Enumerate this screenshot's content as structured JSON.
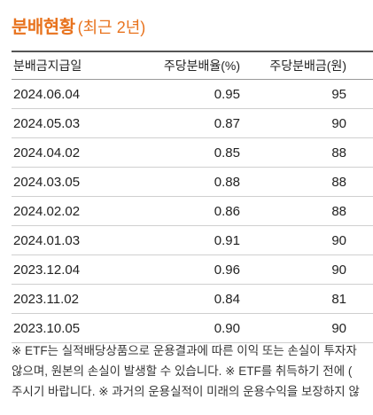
{
  "title": {
    "main": "분배현황",
    "sub": "(최근 2년)"
  },
  "table": {
    "headers": {
      "date": "분배금지급일",
      "rate": "주당분배율(%)",
      "amount": "주당분배금(원)"
    },
    "rows": [
      {
        "date": "2024.06.04",
        "rate": "0.95",
        "amount": "95"
      },
      {
        "date": "2024.05.03",
        "rate": "0.87",
        "amount": "90"
      },
      {
        "date": "2024.04.02",
        "rate": "0.85",
        "amount": "88"
      },
      {
        "date": "2024.03.05",
        "rate": "0.88",
        "amount": "88"
      },
      {
        "date": "2024.02.02",
        "rate": "0.86",
        "amount": "88"
      },
      {
        "date": "2024.01.03",
        "rate": "0.91",
        "amount": "90"
      },
      {
        "date": "2023.12.04",
        "rate": "0.96",
        "amount": "90"
      },
      {
        "date": "2023.11.02",
        "rate": "0.84",
        "amount": "81"
      },
      {
        "date": "2023.10.05",
        "rate": "0.90",
        "amount": "90"
      }
    ]
  },
  "notes": [
    "※ ETF는 실적배당상품으로 운용결과에 따른 이익 또는 손실이 투자자",
    "않으며, 원본의 손실이 발생할 수 있습니다. ※ ETF를 취득하기 전에 (",
    "주시기 바랍니다. ※ 과거의 운용실적이 미래의 운용수익을 보장하지 않"
  ],
  "colors": {
    "title": "#e8731e",
    "header_rule": "#555555",
    "row_rule": "#cfcfcf"
  }
}
